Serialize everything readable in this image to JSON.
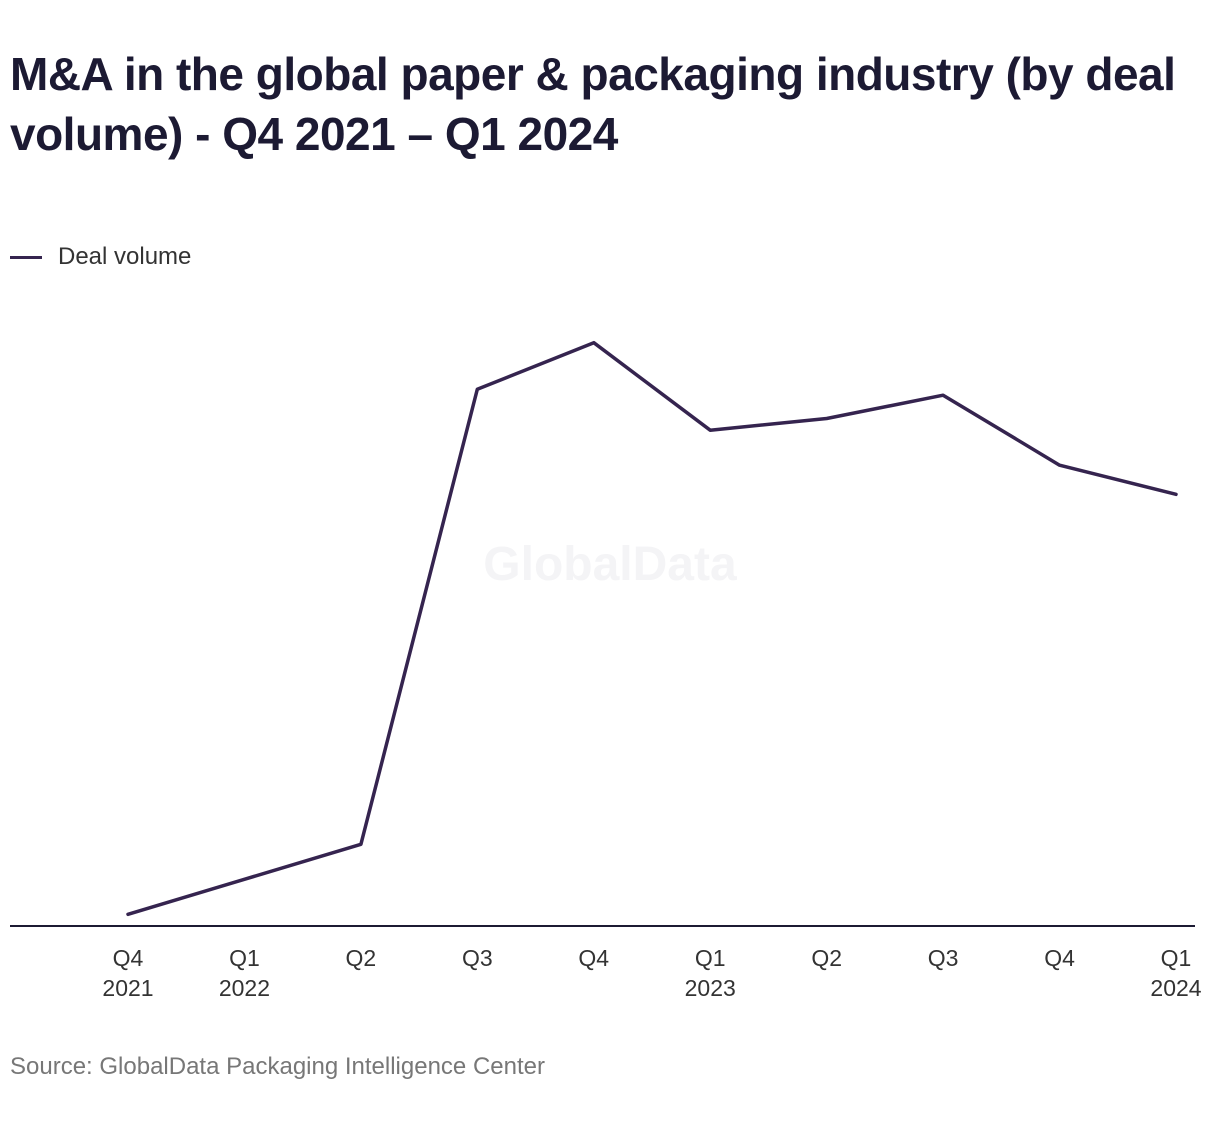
{
  "chart_data": {
    "type": "line",
    "title": "M&A in the global paper & packaging industry (by deal volume) - Q4 2021 – Q1 2024",
    "categories": [
      [
        "Q4",
        "2021"
      ],
      [
        "Q1",
        "2022"
      ],
      [
        "Q2",
        ""
      ],
      [
        "Q3",
        ""
      ],
      [
        "Q4",
        ""
      ],
      [
        "Q1",
        "2023"
      ],
      [
        "Q2",
        ""
      ],
      [
        "Q3",
        ""
      ],
      [
        "Q4",
        ""
      ],
      [
        "Q1",
        "2024"
      ]
    ],
    "series": [
      {
        "name": "Deal volume",
        "color": "#35244f",
        "values": [
          2,
          8,
          14,
          92,
          100,
          85,
          87,
          91,
          79,
          74
        ]
      }
    ],
    "ylim": [
      0,
      120
    ],
    "y_axis_visible": false,
    "grid": false,
    "legend_position": "top-left",
    "watermark": "GlobalData"
  },
  "source": "Source: GlobalData Packaging Intelligence Center"
}
